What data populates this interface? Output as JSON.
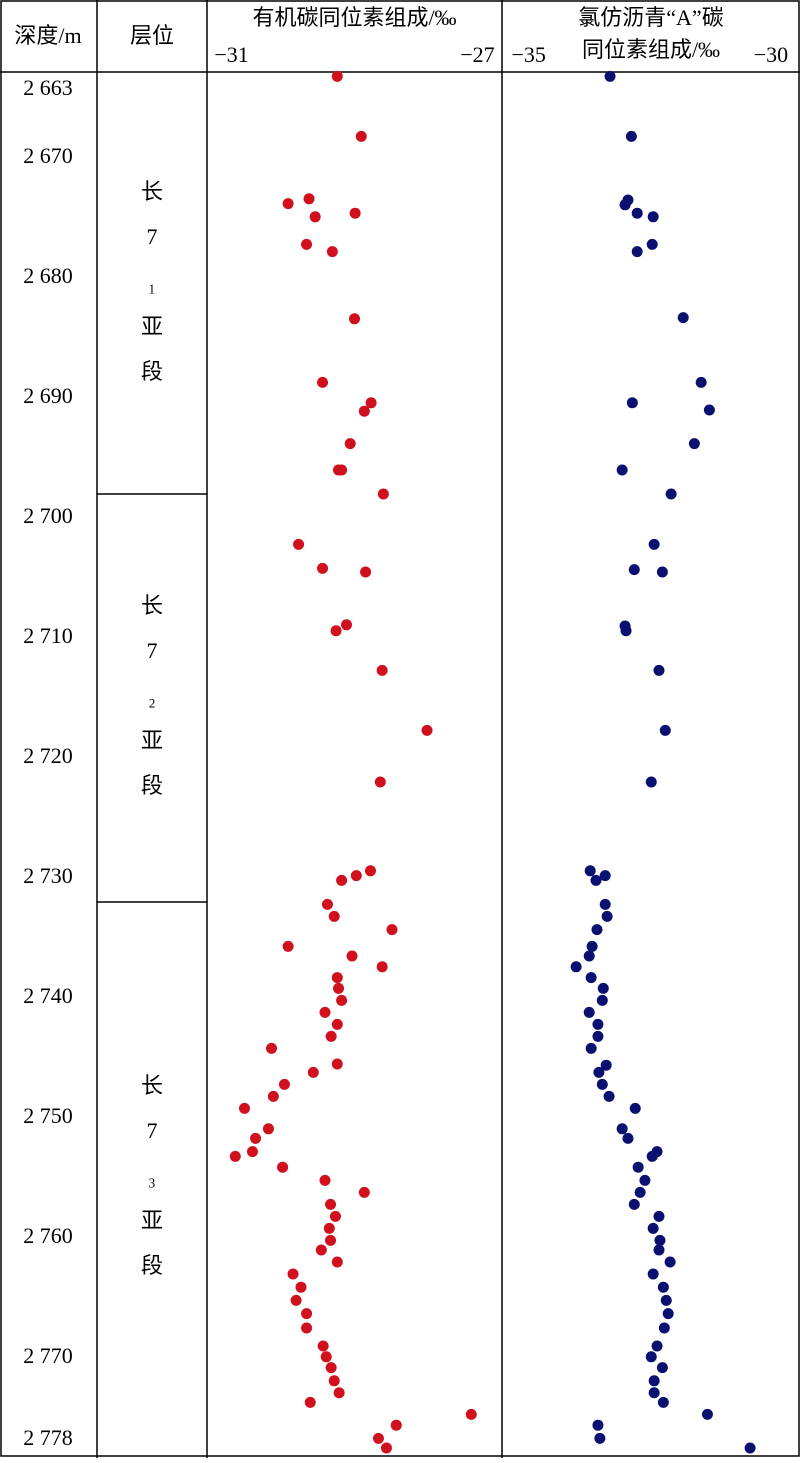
{
  "depth_track": {
    "title": "深度/m",
    "ylim": [
      2663,
      2778
    ],
    "yticks": [
      {
        "value": 2663,
        "label": "2 663"
      },
      {
        "value": 2670,
        "label": "2 670"
      },
      {
        "value": 2680,
        "label": "2 680"
      },
      {
        "value": 2690,
        "label": "2 690"
      },
      {
        "value": 2700,
        "label": "2 700"
      },
      {
        "value": 2710,
        "label": "2 710"
      },
      {
        "value": 2720,
        "label": "2 720"
      },
      {
        "value": 2730,
        "label": "2 730"
      },
      {
        "value": 2740,
        "label": "2 740"
      },
      {
        "value": 2750,
        "label": "2 750"
      },
      {
        "value": 2760,
        "label": "2 760"
      },
      {
        "value": 2770,
        "label": "2 770"
      },
      {
        "value": 2778,
        "label": "2 778"
      }
    ]
  },
  "layer_track": {
    "title": "层位",
    "layers": [
      {
        "name": "长7₁亚段",
        "top": 2663,
        "bottom": 2698
      },
      {
        "name": "长7₂亚段",
        "top": 2698,
        "bottom": 2732
      },
      {
        "name": "长7₃亚段",
        "top": 2732,
        "bottom": 2778
      }
    ]
  },
  "chart_data": [
    {
      "type": "scatter",
      "title": [
        "有机碳同位素组成/‰"
      ],
      "xlim": [
        -31.4,
        -26.6
      ],
      "xticks": [
        {
          "value": -31,
          "label": "−31"
        },
        {
          "value": -27,
          "label": "−27"
        }
      ],
      "ylim": [
        2663,
        2778
      ],
      "series": [
        {
          "color": "#d0101c",
          "x": [
            -29.28,
            -28.89,
            -30.08,
            -29.74,
            -29.64,
            -28.99,
            -29.78,
            -29.36,
            -29.0,
            -29.52,
            -28.73,
            -28.84,
            -29.07,
            -29.26,
            -29.21,
            -28.53,
            -29.91,
            -29.52,
            -28.82,
            -29.13,
            -29.3,
            -28.55,
            -27.82,
            -28.58,
            -28.74,
            -28.97,
            -29.21,
            -29.44,
            -29.33,
            -28.39,
            -30.08,
            -29.04,
            -28.55,
            -29.28,
            -29.26,
            -29.21,
            -29.48,
            -29.28,
            -29.38,
            -30.35,
            -29.28,
            -29.67,
            -30.14,
            -30.32,
            -30.79,
            -30.4,
            -30.61,
            -30.66,
            -30.94,
            -30.17,
            -29.48,
            -28.84,
            -29.39,
            -29.31,
            -29.41,
            -29.39,
            -29.54,
            -29.28,
            -30.0,
            -29.87,
            -29.95,
            -29.78,
            -29.78,
            -29.51,
            -29.46,
            -29.38,
            -29.33,
            -29.25,
            -29.72,
            -27.1,
            -28.32,
            -28.61,
            -28.48
          ],
          "y": [
            2663.2,
            2668.2,
            2673.8,
            2673.4,
            2674.9,
            2674.6,
            2677.2,
            2677.8,
            2683.4,
            2688.7,
            2690.4,
            2691.1,
            2693.8,
            2696.0,
            2696.0,
            2698.0,
            2702.2,
            2704.2,
            2704.5,
            2708.9,
            2709.4,
            2712.7,
            2717.7,
            2722.0,
            2729.4,
            2729.8,
            2730.2,
            2732.2,
            2733.2,
            2734.3,
            2735.7,
            2736.5,
            2737.4,
            2738.3,
            2739.2,
            2740.2,
            2741.2,
            2742.2,
            2743.2,
            2744.2,
            2745.5,
            2746.2,
            2747.2,
            2748.2,
            2749.2,
            2750.9,
            2751.7,
            2752.8,
            2753.2,
            2754.1,
            2755.2,
            2756.2,
            2757.2,
            2758.2,
            2759.2,
            2760.2,
            2761.0,
            2762.0,
            2763.0,
            2764.1,
            2765.2,
            2766.3,
            2767.5,
            2769.0,
            2769.9,
            2770.8,
            2771.9,
            2772.9,
            2773.7,
            2774.7,
            2775.6,
            2776.7,
            2777.5
          ]
        }
      ]
    },
    {
      "type": "scatter",
      "title": [
        "氯仿沥青“A”碳",
        "同位素组成/‰"
      ],
      "xlim": [
        -35.55,
        -29.4
      ],
      "xticks": [
        {
          "value": -35,
          "label": "−35"
        },
        {
          "value": -30,
          "label": "−30"
        }
      ],
      "ylim": [
        2663,
        2778
      ],
      "series": [
        {
          "color": "#0a1070",
          "x": [
            -33.32,
            -32.88,
            -32.95,
            -33.01,
            -32.76,
            -32.43,
            -32.76,
            -32.45,
            -31.81,
            -31.44,
            -31.27,
            -32.86,
            -31.58,
            -33.07,
            -32.06,
            -32.41,
            -32.24,
            -32.82,
            -33.01,
            -32.99,
            -32.31,
            -32.18,
            -32.47,
            -33.73,
            -33.42,
            -33.61,
            -33.42,
            -33.38,
            -33.59,
            -33.69,
            -33.75,
            -34.02,
            -33.71,
            -33.46,
            -33.48,
            -33.75,
            -33.57,
            -33.57,
            -33.71,
            -33.4,
            -33.55,
            -33.48,
            -33.34,
            -32.8,
            -33.07,
            -32.95,
            -32.35,
            -32.45,
            -32.74,
            -32.6,
            -32.7,
            -32.82,
            -32.31,
            -32.43,
            -32.29,
            -32.31,
            -32.08,
            -32.43,
            -32.22,
            -32.16,
            -32.12,
            -32.2,
            -32.35,
            -32.47,
            -32.24,
            -32.41,
            -32.41,
            -32.22,
            -31.31,
            -33.57,
            -33.53,
            -30.43
          ],
          "y": [
            2663.2,
            2668.2,
            2673.5,
            2673.9,
            2674.6,
            2674.9,
            2677.8,
            2677.2,
            2683.3,
            2688.7,
            2691.0,
            2690.4,
            2693.8,
            2696.0,
            2698.0,
            2702.2,
            2704.5,
            2704.3,
            2709.0,
            2709.4,
            2712.7,
            2717.7,
            2722.0,
            2729.4,
            2729.8,
            2730.2,
            2732.2,
            2733.2,
            2734.3,
            2735.7,
            2736.5,
            2737.4,
            2738.3,
            2739.2,
            2740.2,
            2741.2,
            2742.2,
            2743.2,
            2744.2,
            2745.6,
            2746.2,
            2747.2,
            2748.2,
            2749.2,
            2750.9,
            2751.7,
            2752.8,
            2753.2,
            2754.1,
            2755.2,
            2756.2,
            2757.2,
            2758.2,
            2759.2,
            2760.2,
            2761.0,
            2762.0,
            2763.0,
            2764.1,
            2765.2,
            2766.3,
            2767.5,
            2769.0,
            2769.9,
            2770.8,
            2771.9,
            2772.9,
            2773.7,
            2774.7,
            2775.6,
            2776.7,
            2777.5
          ]
        }
      ]
    }
  ]
}
